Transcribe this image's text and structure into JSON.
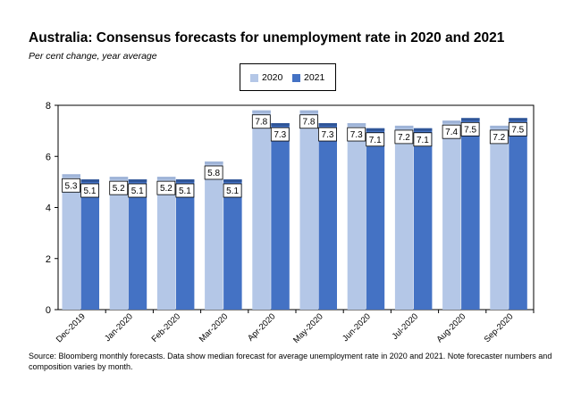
{
  "title": "Australia: Consensus forecasts for unemployment rate in 2020 and 2021",
  "subtitle": "Per cent change, year average",
  "source": "Source: Bloomberg monthly forecasts.  Data show median forecast for average unemployment rate in 2020 and 2021.  Note forecaster numbers and composition varies by month.",
  "colors": {
    "s2020": "#b4c7e7",
    "s2021": "#4472c4"
  },
  "chart_data": {
    "type": "bar",
    "categories": [
      "Dec-2019",
      "Jan-2020",
      "Feb-2020",
      "Mar-2020",
      "Apr-2020",
      "May-2020",
      "Jun-2020",
      "Jul-2020",
      "Aug-2020",
      "Sep-2020"
    ],
    "series": [
      {
        "name": "2020",
        "values": [
          5.3,
          5.2,
          5.2,
          5.8,
          7.8,
          7.8,
          7.3,
          7.2,
          7.4,
          7.2
        ]
      },
      {
        "name": "2021",
        "values": [
          5.1,
          5.1,
          5.1,
          5.1,
          7.3,
          7.3,
          7.1,
          7.1,
          7.5,
          7.5
        ]
      }
    ],
    "data_labels": [
      [
        "5.3",
        "5.2",
        "5.2",
        "5.8",
        "7.8",
        "7.8",
        "7.3",
        "7.2",
        "7.4",
        "7.2"
      ],
      [
        "5.1",
        "5.1",
        "5.1",
        "5.1",
        "7.3",
        "7.3",
        "7.1",
        "7.1",
        "7.5",
        "7.5"
      ]
    ],
    "yticks": [
      "0",
      "2",
      "4",
      "6",
      "8"
    ],
    "ylim": [
      0,
      8
    ],
    "xlabel": "",
    "ylabel": "",
    "legend": "top-center",
    "grid": false
  }
}
